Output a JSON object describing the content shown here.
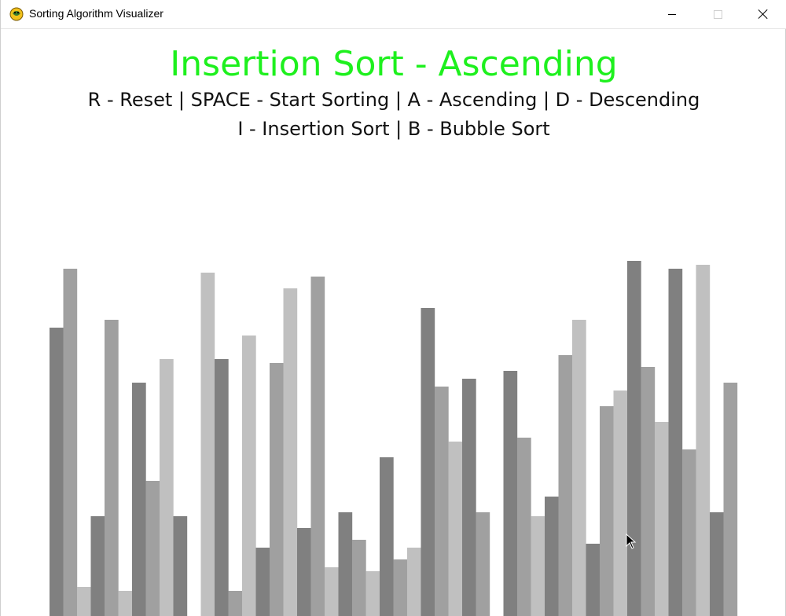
{
  "window": {
    "title": "Sorting Algorithm Visualizer"
  },
  "header": {
    "title": "Insertion Sort - Ascending",
    "controls_line1": "R - Reset | SPACE - Start Sorting | A - Ascending | D - Descending",
    "controls_line2": "I - Insertion Sort | B - Bubble Sort"
  },
  "colors": {
    "title_color": "#1ef01e",
    "bar_shades": [
      "#808080",
      "#a0a0a0",
      "#c0c0c0"
    ]
  },
  "chart_data": {
    "type": "bar",
    "values": [
      367,
      442,
      37,
      127,
      377,
      32,
      297,
      172,
      327,
      127,
      0,
      437,
      327,
      32,
      357,
      87,
      322,
      417,
      112,
      432,
      62,
      132,
      97,
      57,
      202,
      72,
      87,
      392,
      292,
      222,
      302,
      132,
      0,
      312,
      227,
      127,
      152,
      332,
      377,
      92,
      267,
      287,
      452,
      317,
      247,
      442,
      212,
      447,
      132,
      297
    ]
  }
}
